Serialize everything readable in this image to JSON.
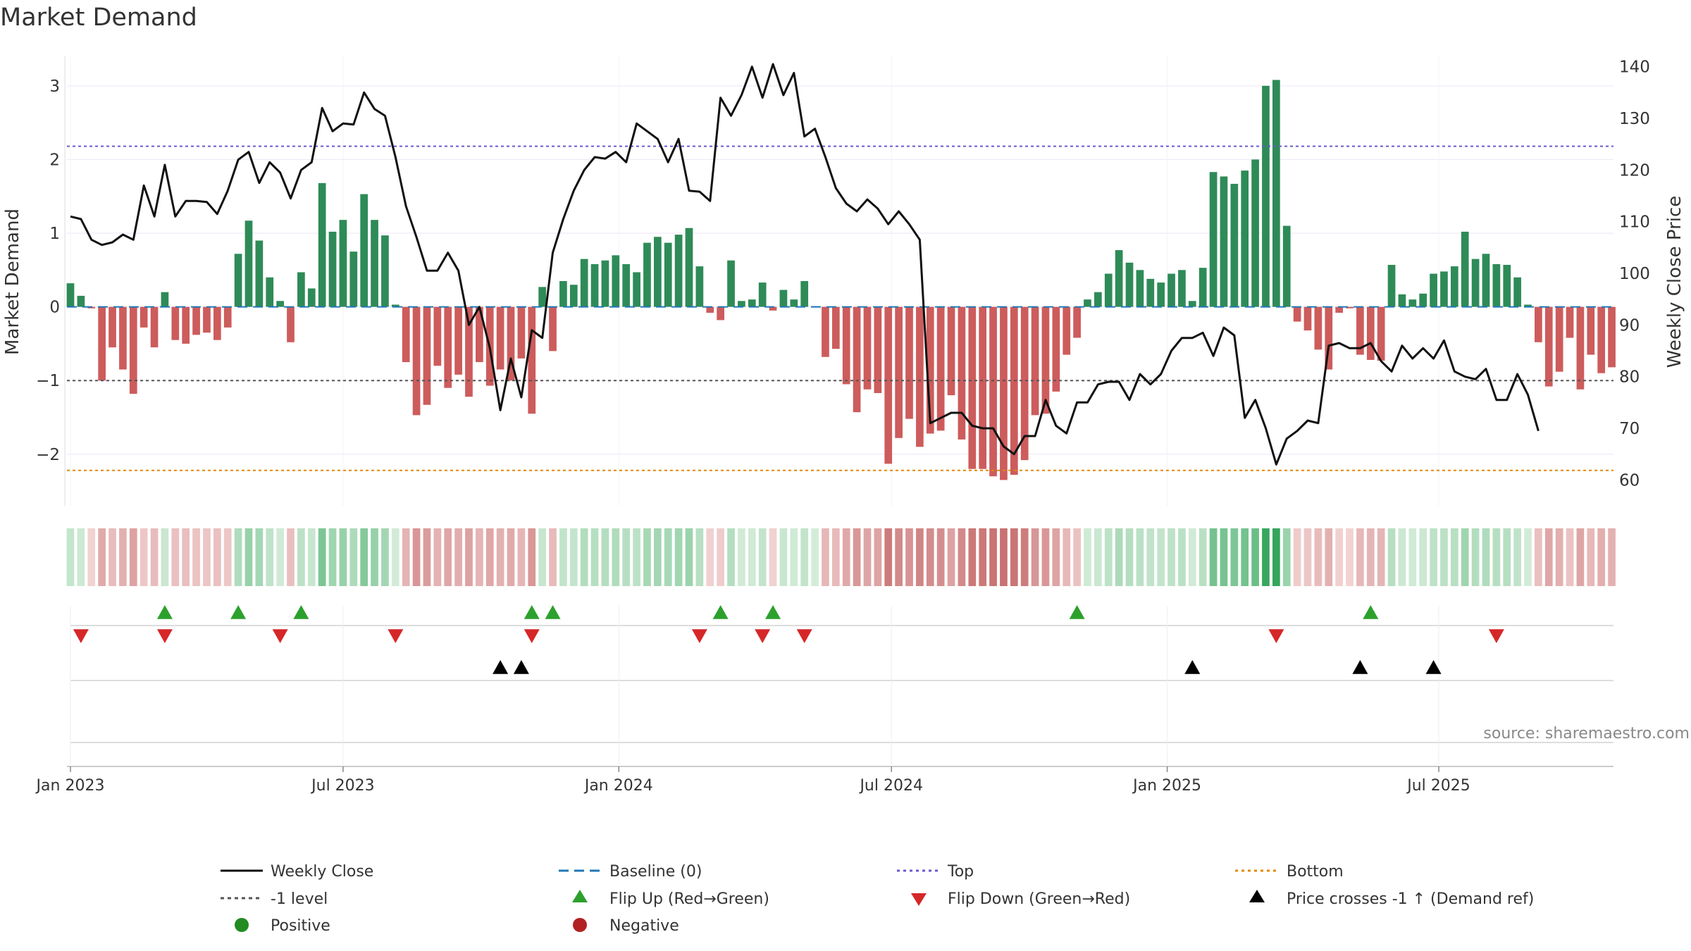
{
  "chart_data": {
    "type": "bar",
    "title": "Market Demand",
    "ylabel_left": "Market Demand",
    "ylabel_right": "Weekly Close Price",
    "source": "source: sharemaestro.com",
    "ylim_left": [
      -2.7,
      3.4
    ],
    "ylim_right": [
      55,
      142
    ],
    "left_ticks": [
      {
        "value": 3,
        "label": "3"
      },
      {
        "value": 2,
        "label": "2"
      },
      {
        "value": 1,
        "label": "1"
      },
      {
        "value": 0,
        "label": "0"
      },
      {
        "value": -1,
        "label": "−1"
      },
      {
        "value": -2,
        "label": "−2"
      }
    ],
    "right_ticks": [
      {
        "value": 140,
        "label": "140"
      },
      {
        "value": 130,
        "label": "130"
      },
      {
        "value": 120,
        "label": "120"
      },
      {
        "value": 110,
        "label": "110"
      },
      {
        "value": 100,
        "label": "100"
      },
      {
        "value": 90,
        "label": "90"
      },
      {
        "value": 80,
        "label": "80"
      },
      {
        "value": 70,
        "label": "70"
      },
      {
        "value": 60,
        "label": "60"
      }
    ],
    "x_ticks": [
      {
        "week": 0,
        "label": "Jan 2023"
      },
      {
        "week": 26,
        "label": "Jul 2023"
      },
      {
        "week": 52.3,
        "label": "Jan 2024"
      },
      {
        "week": 78.3,
        "label": "Jul 2024"
      },
      {
        "week": 104.6,
        "label": "Jan 2025"
      },
      {
        "week": 130.5,
        "label": "Jul 2025"
      }
    ],
    "reference_lines": {
      "top": 2.18,
      "bottom": -2.22,
      "minus_one": -1,
      "baseline": 0
    },
    "demand": [
      0.32,
      0.15,
      -0.02,
      -1.0,
      -0.55,
      -0.85,
      -1.18,
      -0.28,
      -0.55,
      0.2,
      -0.45,
      -0.5,
      -0.38,
      -0.35,
      -0.45,
      -0.28,
      0.72,
      1.17,
      0.9,
      0.4,
      0.08,
      -0.48,
      0.47,
      0.25,
      1.68,
      1.02,
      1.18,
      0.75,
      1.53,
      1.18,
      0.97,
      0.03,
      -0.75,
      -1.47,
      -1.33,
      -0.8,
      -1.1,
      -0.92,
      -1.22,
      -0.75,
      -1.07,
      -0.85,
      -1.0,
      -0.7,
      -1.45,
      0.27,
      -0.6,
      0.35,
      0.3,
      0.65,
      0.58,
      0.63,
      0.7,
      0.58,
      0.47,
      0.87,
      0.95,
      0.87,
      0.98,
      1.07,
      0.55,
      -0.08,
      -0.18,
      0.63,
      0.08,
      0.1,
      0.33,
      -0.05,
      0.23,
      0.1,
      0.35,
      0.01,
      -0.68,
      -0.57,
      -1.05,
      -1.43,
      -1.12,
      -1.17,
      -2.13,
      -1.78,
      -1.52,
      -1.9,
      -1.72,
      -1.68,
      -1.2,
      -1.8,
      -2.2,
      -2.2,
      -2.3,
      -2.35,
      -2.28,
      -2.08,
      -1.47,
      -1.45,
      -1.15,
      -0.65,
      -0.42,
      0.1,
      0.2,
      0.45,
      0.77,
      0.6,
      0.5,
      0.38,
      0.33,
      0.45,
      0.5,
      0.08,
      0.53,
      1.83,
      1.77,
      1.67,
      1.85,
      2.0,
      3.0,
      3.08,
      1.1,
      -0.2,
      -0.32,
      -0.58,
      -0.85,
      -0.08,
      -0.02,
      -0.65,
      -0.72,
      -0.73,
      0.57,
      0.17,
      0.1,
      0.18,
      0.45,
      0.48,
      0.55,
      1.02,
      0.65,
      0.72,
      0.58,
      0.57,
      0.4,
      0.03,
      -0.48,
      -1.08,
      -0.88,
      -0.42,
      -1.12,
      -0.65,
      -0.9,
      -0.82
    ],
    "weekly_close": [
      111,
      110.5,
      106.5,
      105.5,
      106,
      107.5,
      106.5,
      117,
      111,
      121,
      111,
      114,
      114,
      113.8,
      111.5,
      116,
      122,
      123.5,
      117.5,
      121.5,
      119.5,
      114.5,
      120,
      121.5,
      132,
      127.5,
      129,
      128.8,
      135,
      131.8,
      130.5,
      122.5,
      113,
      107,
      100.5,
      100.5,
      104,
      100.5,
      90,
      93.5,
      85.5,
      73.5,
      83.5,
      76,
      89,
      87.5,
      104,
      110.5,
      116,
      120,
      122.5,
      122.2,
      123.5,
      121.5,
      129,
      127.5,
      126,
      121.5,
      126,
      116,
      115.8,
      114,
      134,
      130.5,
      134.5,
      140,
      134,
      140.5,
      134.5,
      138.8,
      126.5,
      128,
      122.5,
      116.5,
      113.5,
      112,
      114.3,
      112.5,
      109.5,
      112,
      109.5,
      106.5,
      71,
      72,
      73,
      73,
      70.5,
      70,
      70,
      66.5,
      65,
      68.5,
      68.5,
      75.5,
      70.5,
      69,
      75,
      75,
      78.5,
      79,
      79,
      75.5,
      80.5,
      78.5,
      80.5,
      85,
      87.5,
      87.5,
      88.5,
      84,
      89.5,
      88,
      72,
      75.5,
      70,
      63,
      68,
      69.5,
      71.5,
      71,
      86,
      86.5,
      85.5,
      85.5,
      86.5,
      83,
      81,
      86,
      83.5,
      85.5,
      83.5,
      87,
      81,
      80,
      79.5,
      81.5,
      75.5,
      75.5,
      80.5,
      76.5,
      69.5
    ],
    "flip_up_weeks": [
      9,
      16,
      22,
      44,
      46,
      62,
      67,
      96,
      124
    ],
    "flip_down_weeks": [
      1,
      9,
      20,
      31,
      44,
      60,
      66,
      70,
      115,
      136
    ],
    "price_cross_weeks": [
      41,
      43,
      107,
      123,
      130
    ],
    "legend": {
      "weekly_close": "Weekly Close",
      "baseline": "Baseline (0)",
      "top": "Top",
      "bottom": "Bottom",
      "minus_one": "-1 level",
      "flip_up": "Flip Up (Red→Green)",
      "flip_down": "Flip Down (Green→Red)",
      "price_cross": "Price crosses -1 ↑ (Demand ref)",
      "positive": "Positive",
      "negative": "Negative"
    },
    "colors": {
      "positive_bar": "#2e8b57",
      "negative_bar": "#cd5c5c",
      "price_line": "#111111",
      "baseline": "#1f77b4",
      "top_line": "#6a5acd",
      "bottom_line": "#e08a00",
      "minus_one_line": "#555555",
      "flip_up": "#2ca02c",
      "flip_down": "#d62728",
      "cross": "#000000",
      "positive_dot": "#228b22",
      "negative_dot": "#b22222"
    }
  }
}
